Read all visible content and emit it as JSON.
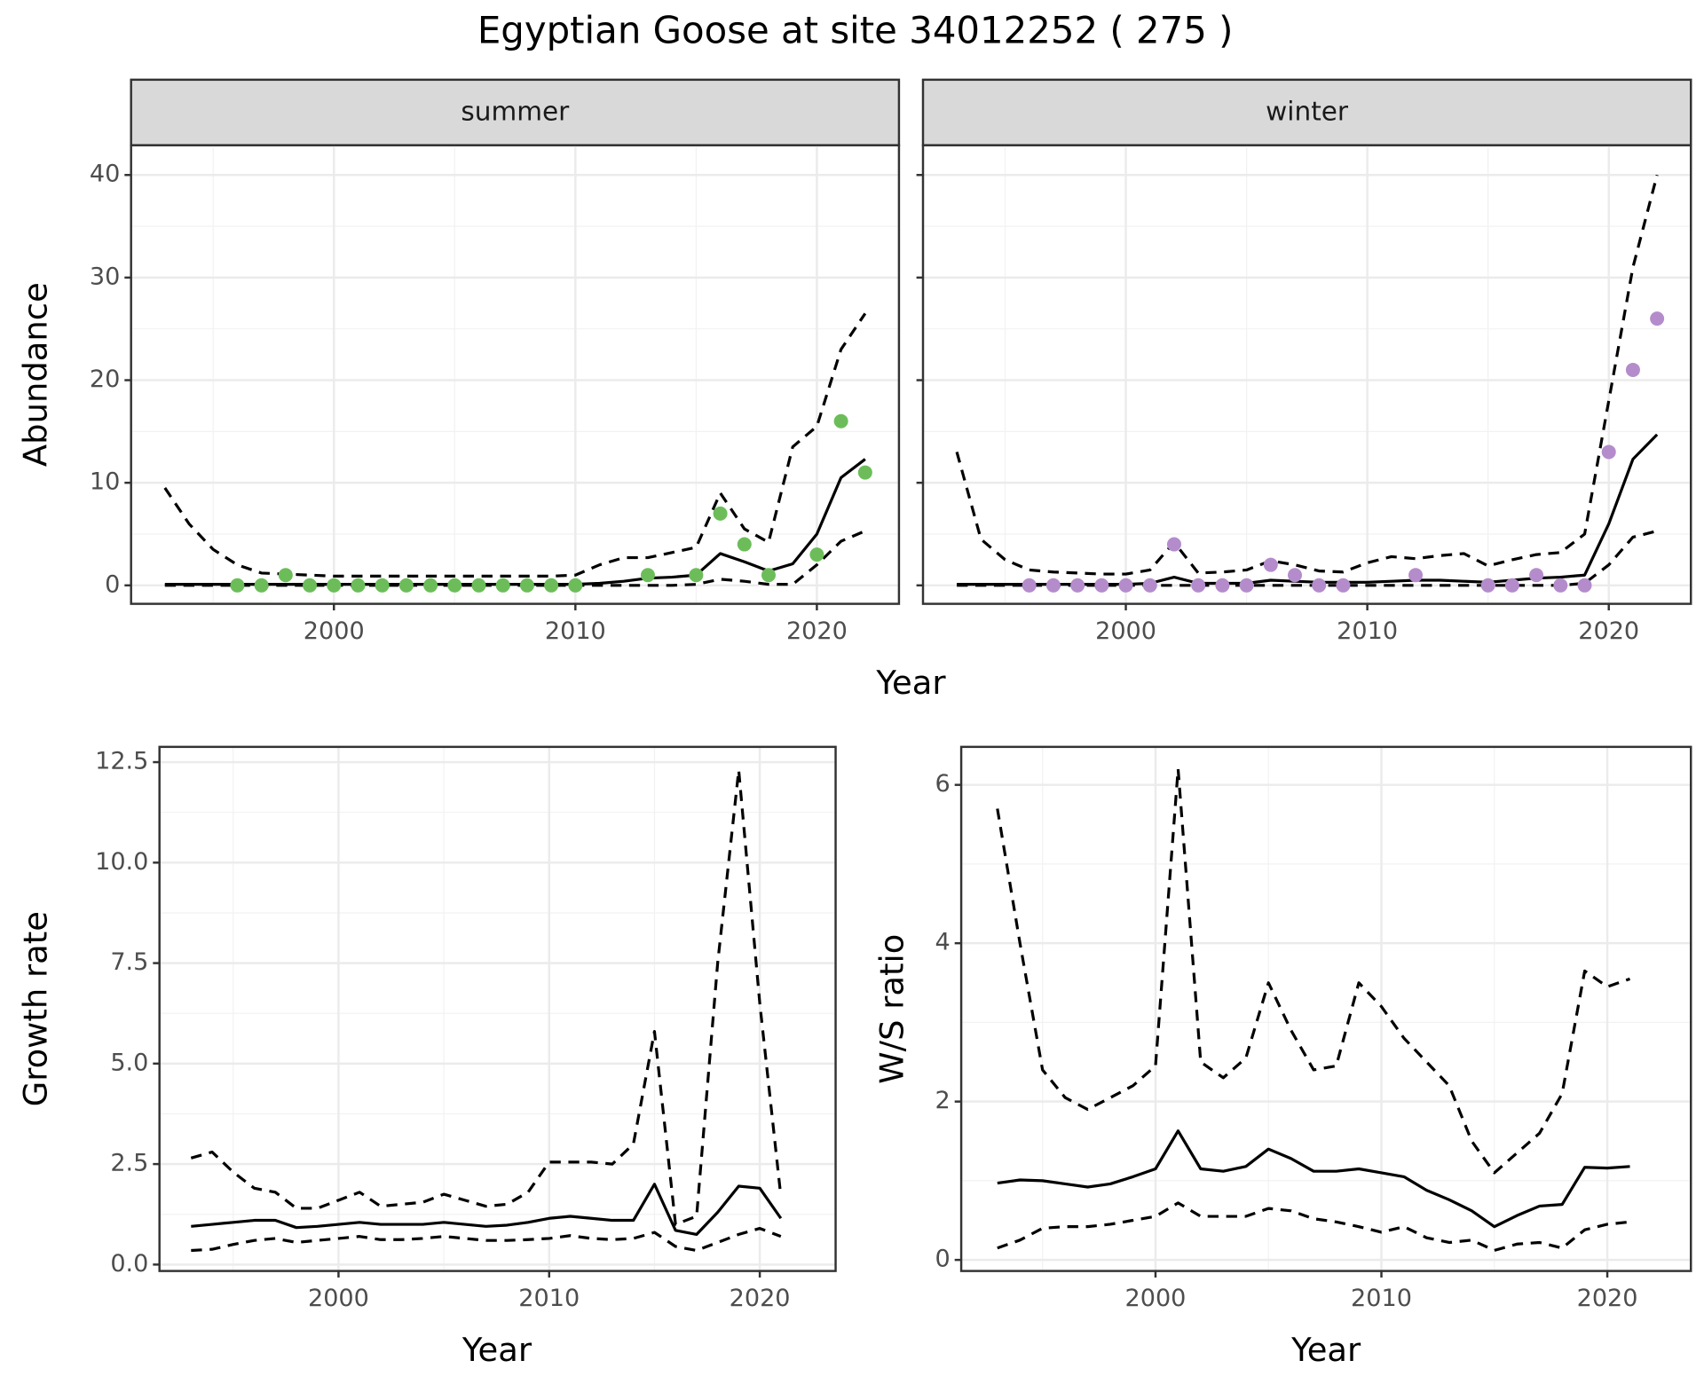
{
  "title": "Egyptian Goose at site 34012252 ( 275 )",
  "chart_data": [
    {
      "type": "line",
      "facet": "summer",
      "xlabel": "Year",
      "ylabel": "Abundance",
      "x": [
        1993,
        1994,
        1995,
        1996,
        1997,
        1998,
        1999,
        2000,
        2001,
        2002,
        2003,
        2004,
        2005,
        2006,
        2007,
        2008,
        2009,
        2010,
        2011,
        2012,
        2013,
        2014,
        2015,
        2016,
        2017,
        2018,
        2019,
        2020,
        2021,
        2022
      ],
      "xlim": [
        1991.6,
        2023.4
      ],
      "xticks": [
        2000,
        2010,
        2020
      ],
      "ylim": [
        -1.8,
        42.9
      ],
      "yticks": [
        0,
        10,
        20,
        30,
        40
      ],
      "grid": true,
      "series": [
        {
          "color": "#000000",
          "dash": "solid",
          "values": [
            0.1,
            0.1,
            0.1,
            0.1,
            0.1,
            0.1,
            0.1,
            0.1,
            0.1,
            0.1,
            0.1,
            0.1,
            0.1,
            0.1,
            0.1,
            0.1,
            0.1,
            0.1,
            0.2,
            0.4,
            0.7,
            0.8,
            1.0,
            3.1,
            2.3,
            1.4,
            2.1,
            5.0,
            10.5,
            12.3
          ]
        },
        {
          "color": "#000000",
          "dash": "dashed",
          "values": [
            9.5,
            6.0,
            3.5,
            2.0,
            1.2,
            1.1,
            1.0,
            0.9,
            0.9,
            0.9,
            0.9,
            0.9,
            0.9,
            0.9,
            0.9,
            0.9,
            0.9,
            1.0,
            2.0,
            2.7,
            2.7,
            3.2,
            3.7,
            9.0,
            5.5,
            4.2,
            13.5,
            15.5,
            23.0,
            26.5
          ]
        },
        {
          "color": "#000000",
          "dash": "dashed",
          "values": [
            0,
            0,
            0,
            0,
            0,
            0,
            0,
            0,
            0,
            0,
            0,
            0,
            0,
            0,
            0,
            0,
            0,
            0,
            0,
            0,
            0,
            0,
            0.1,
            0.6,
            0.4,
            0.1,
            0.1,
            2.0,
            4.3,
            5.3
          ]
        },
        {
          "color": "#6cbd5a",
          "marker": "point",
          "values": [
            null,
            null,
            null,
            0,
            0,
            1,
            0,
            0,
            0,
            0,
            0,
            0,
            0,
            0,
            0,
            0,
            0,
            0,
            null,
            null,
            1,
            null,
            1,
            7,
            4,
            1,
            null,
            3,
            16,
            11
          ]
        }
      ]
    },
    {
      "type": "line",
      "facet": "winter",
      "shared_y": true,
      "x": [
        1993,
        1994,
        1995,
        1996,
        1997,
        1998,
        1999,
        2000,
        2001,
        2002,
        2003,
        2004,
        2005,
        2006,
        2007,
        2008,
        2009,
        2010,
        2011,
        2012,
        2013,
        2014,
        2015,
        2016,
        2017,
        2018,
        2019,
        2020,
        2021,
        2022
      ],
      "xlim": [
        1991.6,
        2023.4
      ],
      "xticks": [
        2000,
        2010,
        2020
      ],
      "ylim": [
        -1.8,
        42.9
      ],
      "yticks": [
        0,
        10,
        20,
        30,
        40
      ],
      "grid": true,
      "series": [
        {
          "color": "#000000",
          "dash": "solid",
          "values": [
            0.1,
            0.1,
            0.1,
            0.1,
            0.1,
            0.1,
            0.1,
            0.1,
            0.2,
            0.8,
            0.2,
            0.2,
            0.2,
            0.5,
            0.4,
            0.3,
            0.3,
            0.3,
            0.4,
            0.5,
            0.5,
            0.4,
            0.3,
            0.5,
            0.7,
            0.8,
            1.0,
            6.0,
            12.3,
            14.7
          ]
        },
        {
          "color": "#000000",
          "dash": "dashed",
          "values": [
            13.0,
            4.5,
            2.5,
            1.5,
            1.3,
            1.2,
            1.1,
            1.1,
            1.5,
            4.2,
            1.2,
            1.3,
            1.5,
            2.4,
            2.0,
            1.4,
            1.3,
            2.2,
            2.8,
            2.6,
            2.9,
            3.1,
            1.9,
            2.5,
            3.0,
            3.2,
            5.0,
            18.0,
            31.0,
            40.0
          ]
        },
        {
          "color": "#000000",
          "dash": "dashed",
          "values": [
            0,
            0,
            0,
            0,
            0,
            0,
            0,
            0,
            0,
            0,
            0,
            0,
            0,
            0,
            0,
            0,
            0,
            0,
            0,
            0,
            0,
            0,
            0,
            0,
            0,
            0,
            0.2,
            2.0,
            4.7,
            5.3
          ]
        },
        {
          "color": "#b48ccb",
          "marker": "point",
          "values": [
            null,
            null,
            null,
            0,
            0,
            0,
            0,
            0,
            0,
            4,
            0,
            0,
            0,
            2,
            1,
            0,
            0,
            null,
            null,
            1,
            null,
            null,
            0,
            0,
            1,
            0,
            0,
            13,
            21,
            26
          ]
        }
      ]
    },
    {
      "type": "line",
      "xlabel": "Year",
      "ylabel": "Growth rate",
      "x": [
        1993,
        1994,
        1995,
        1996,
        1997,
        1998,
        1999,
        2000,
        2001,
        2002,
        2003,
        2004,
        2005,
        2006,
        2007,
        2008,
        2009,
        2010,
        2011,
        2012,
        2013,
        2014,
        2015,
        2016,
        2017,
        2018,
        2019,
        2020,
        2021
      ],
      "xlim": [
        1991.5,
        2023.6
      ],
      "xticks": [
        2000,
        2010,
        2020
      ],
      "ylim": [
        -0.16,
        12.88
      ],
      "yticks": [
        {
          "value": 0,
          "label": "0.0"
        },
        2.5,
        {
          "value": 5,
          "label": "5.0"
        },
        7.5,
        {
          "value": 10,
          "label": "10.0"
        },
        12.5
      ],
      "grid": true,
      "series": [
        {
          "color": "#000000",
          "dash": "solid",
          "values": [
            0.95,
            1.0,
            1.05,
            1.1,
            1.1,
            0.92,
            0.95,
            1.0,
            1.05,
            1.0,
            1.0,
            1.0,
            1.05,
            1.0,
            0.95,
            0.98,
            1.05,
            1.15,
            1.2,
            1.15,
            1.1,
            1.1,
            2.0,
            0.85,
            0.75,
            1.3,
            1.95,
            1.9,
            1.15
          ]
        },
        {
          "color": "#000000",
          "dash": "dashed",
          "values": [
            2.65,
            2.8,
            2.3,
            1.9,
            1.8,
            1.4,
            1.4,
            1.6,
            1.8,
            1.45,
            1.5,
            1.55,
            1.75,
            1.6,
            1.45,
            1.5,
            1.8,
            2.55,
            2.55,
            2.55,
            2.5,
            3.0,
            5.8,
            1.0,
            1.2,
            7.5,
            12.3,
            6.5,
            1.7
          ]
        },
        {
          "color": "#000000",
          "dash": "dashed",
          "values": [
            0.35,
            0.38,
            0.5,
            0.6,
            0.65,
            0.55,
            0.6,
            0.65,
            0.7,
            0.62,
            0.62,
            0.65,
            0.7,
            0.65,
            0.6,
            0.6,
            0.62,
            0.65,
            0.72,
            0.65,
            0.62,
            0.65,
            0.8,
            0.45,
            0.35,
            0.55,
            0.75,
            0.9,
            0.7
          ]
        }
      ]
    },
    {
      "type": "line",
      "xlabel": "Year",
      "ylabel": "W/S ratio",
      "x": [
        1993,
        1994,
        1995,
        1996,
        1997,
        1998,
        1999,
        2000,
        2001,
        2002,
        2003,
        2004,
        2005,
        2006,
        2007,
        2008,
        2009,
        2010,
        2011,
        2012,
        2013,
        2014,
        2015,
        2016,
        2017,
        2018,
        2019,
        2020,
        2021
      ],
      "xlim": [
        1991.4,
        2023.7
      ],
      "xticks": [
        2000,
        2010,
        2020
      ],
      "ylim": [
        -0.14,
        6.48
      ],
      "yticks": [
        0,
        2,
        4,
        6
      ],
      "grid": true,
      "series": [
        {
          "color": "#000000",
          "dash": "solid",
          "values": [
            0.97,
            1.01,
            1.0,
            0.96,
            0.92,
            0.96,
            1.05,
            1.15,
            1.63,
            1.15,
            1.12,
            1.18,
            1.4,
            1.28,
            1.12,
            1.12,
            1.15,
            1.1,
            1.05,
            0.88,
            0.76,
            0.62,
            0.42,
            0.56,
            0.68,
            0.7,
            1.17,
            1.16,
            1.18
          ]
        },
        {
          "color": "#000000",
          "dash": "dashed",
          "values": [
            5.7,
            4.0,
            2.4,
            2.05,
            1.9,
            2.05,
            2.2,
            2.45,
            6.2,
            2.5,
            2.3,
            2.55,
            3.5,
            2.9,
            2.4,
            2.45,
            3.5,
            3.2,
            2.8,
            2.5,
            2.2,
            1.5,
            1.1,
            1.35,
            1.6,
            2.1,
            3.65,
            3.45,
            3.55
          ]
        },
        {
          "color": "#000000",
          "dash": "dashed",
          "values": [
            0.15,
            0.25,
            0.4,
            0.42,
            0.42,
            0.45,
            0.5,
            0.55,
            0.72,
            0.55,
            0.55,
            0.55,
            0.65,
            0.62,
            0.52,
            0.48,
            0.42,
            0.35,
            0.42,
            0.28,
            0.22,
            0.25,
            0.12,
            0.2,
            0.22,
            0.15,
            0.38,
            0.45,
            0.48
          ]
        }
      ]
    }
  ]
}
